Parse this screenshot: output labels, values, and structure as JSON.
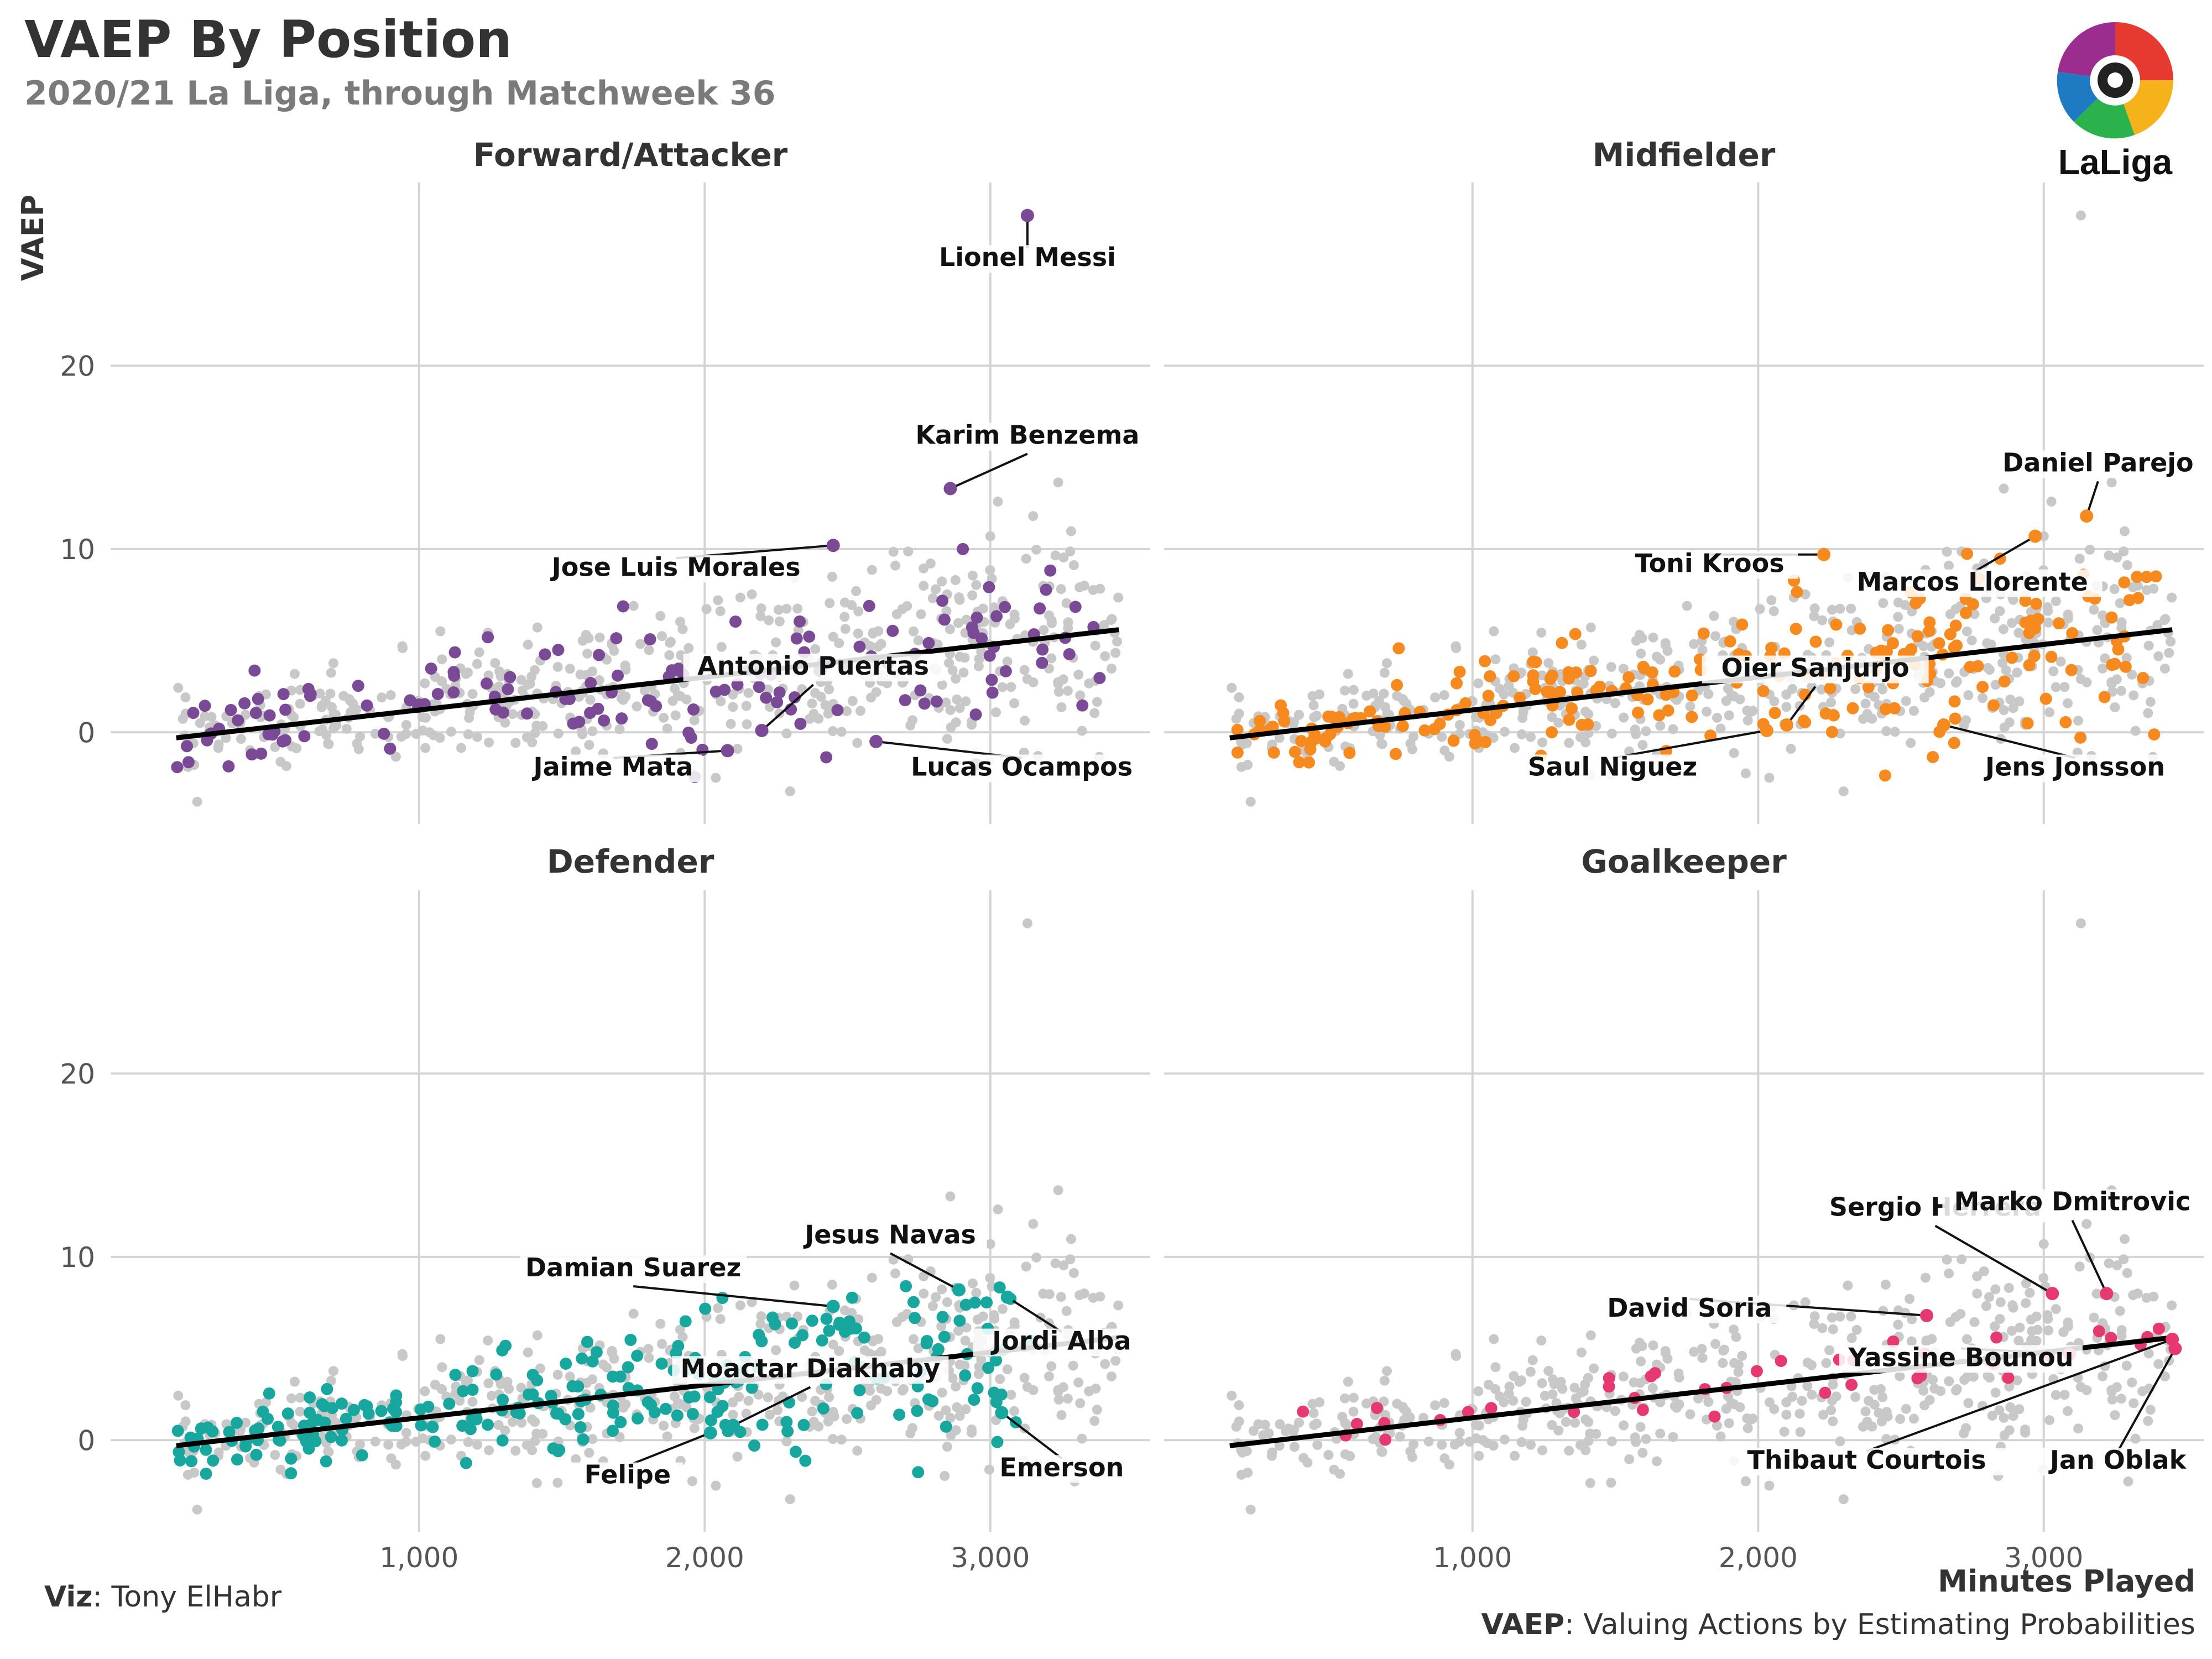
{
  "title": "VAEP By Position",
  "subtitle": "2020/21 La Liga, through Matchweek 36",
  "credit_label": "Viz",
  "credit_value": ": Tony ElHabr",
  "caption_label": "VAEP",
  "caption_value": ": Valuing Actions by Estimating Probabilities",
  "logo_text": "LaLiga",
  "chart_data": {
    "type": "scatter",
    "ylabel": "VAEP",
    "xlabel": "Minutes Played",
    "x_ticks": [
      1000,
      2000,
      3000
    ],
    "x_tick_labels": [
      "1,000",
      "2,000",
      "3,000"
    ],
    "y_ticks": [
      0,
      10,
      20
    ],
    "y_tick_labels": [
      "0",
      "10",
      "20"
    ],
    "xlim": [
      -80,
      3560
    ],
    "ylim": [
      -5,
      30
    ],
    "grid": true,
    "background_color": "#c8c8c8",
    "panels": [
      {
        "name": "Forward/Attacker",
        "color": "#7b4a96",
        "trend": [
          [
            150,
            -0.3
          ],
          [
            3450,
            5.6
          ]
        ],
        "labeled_points": [
          {
            "label": "Lionel Messi",
            "x": 3130,
            "y": 28.2,
            "lx": 3130,
            "ly": 25.5
          },
          {
            "label": "Karim Benzema",
            "x": 2860,
            "y": 13.3,
            "lx": 3130,
            "ly": 15.8
          },
          {
            "label": "Jose Luis Morales",
            "x": 2450,
            "y": 10.2,
            "lx": 1900,
            "ly": 8.6
          },
          {
            "label": "Antonio Puertas",
            "x": 2200,
            "y": 0.1,
            "lx": 2380,
            "ly": 3.2
          },
          {
            "label": "Jaime Mata",
            "x": 2080,
            "y": -1.0,
            "lx": 1680,
            "ly": -2.3
          },
          {
            "label": "Lucas Ocampos",
            "x": 2600,
            "y": -0.5,
            "lx": 3110,
            "ly": -2.3
          }
        ]
      },
      {
        "name": "Midfielder",
        "color": "#f68a1f",
        "trend": [
          [
            150,
            -0.3
          ],
          [
            3450,
            5.6
          ]
        ],
        "labeled_points": [
          {
            "label": "Daniel Parejo",
            "x": 3150,
            "y": 11.8,
            "lx": 3190,
            "ly": 14.3
          },
          {
            "label": "Toni Kroos",
            "x": 2230,
            "y": 9.7,
            "lx": 1830,
            "ly": 8.8
          },
          {
            "label": "Marcos Llorente",
            "x": 2970,
            "y": 10.7,
            "lx": 2750,
            "ly": 7.8
          },
          {
            "label": "Oier Sanjurjo",
            "x": 2100,
            "y": 0.4,
            "lx": 2200,
            "ly": 3.1
          },
          {
            "label": "Saul Niguez",
            "x": 2030,
            "y": 0.1,
            "lx": 1490,
            "ly": -2.3
          },
          {
            "label": "Jens Jonsson",
            "x": 2650,
            "y": 0.4,
            "lx": 3110,
            "ly": -2.3
          }
        ]
      },
      {
        "name": "Defender",
        "color": "#17a79f",
        "trend": [
          [
            150,
            -0.3
          ],
          [
            3450,
            5.6
          ]
        ],
        "labeled_points": [
          {
            "label": "Jesus Navas",
            "x": 2890,
            "y": 8.2,
            "lx": 2650,
            "ly": 10.8
          },
          {
            "label": "Damian Suarez",
            "x": 2450,
            "y": 7.3,
            "lx": 1750,
            "ly": 9.0
          },
          {
            "label": "Jordi Alba",
            "x": 3060,
            "y": 7.8,
            "lx": 3250,
            "ly": 5.0
          },
          {
            "label": "Moactar Diakhaby",
            "x": 2100,
            "y": 0.8,
            "lx": 2370,
            "ly": 3.5
          },
          {
            "label": "Felipe",
            "x": 2020,
            "y": 0.4,
            "lx": 1730,
            "ly": -2.3
          },
          {
            "label": "Emerson",
            "x": 3040,
            "y": 1.5,
            "lx": 3250,
            "ly": -1.9
          }
        ]
      },
      {
        "name": "Goalkeeper",
        "color": "#e5396f",
        "trend": [
          [
            150,
            -0.3
          ],
          [
            3450,
            5.6
          ]
        ],
        "labeled_points": [
          {
            "label": "Sergio Herrera",
            "x": 3030,
            "y": 8.0,
            "lx": 2620,
            "ly": 12.3
          },
          {
            "label": "Marko Dmitrovic",
            "x": 3220,
            "y": 8.0,
            "lx": 3100,
            "ly": 12.6
          },
          {
            "label": "David Soria",
            "x": 2590,
            "y": 6.8,
            "lx": 1760,
            "ly": 6.8
          },
          {
            "label": "Yassine Bounou",
            "x": 3090,
            "y": 4.7,
            "lx": 2710,
            "ly": 4.1
          },
          {
            "label": "Thibaut Courtois",
            "x": 3450,
            "y": 5.5,
            "lx": 2380,
            "ly": -1.5
          },
          {
            "label": "Jan Oblak",
            "x": 3460,
            "y": 5.0,
            "lx": 3260,
            "ly": -1.5
          }
        ]
      }
    ]
  }
}
